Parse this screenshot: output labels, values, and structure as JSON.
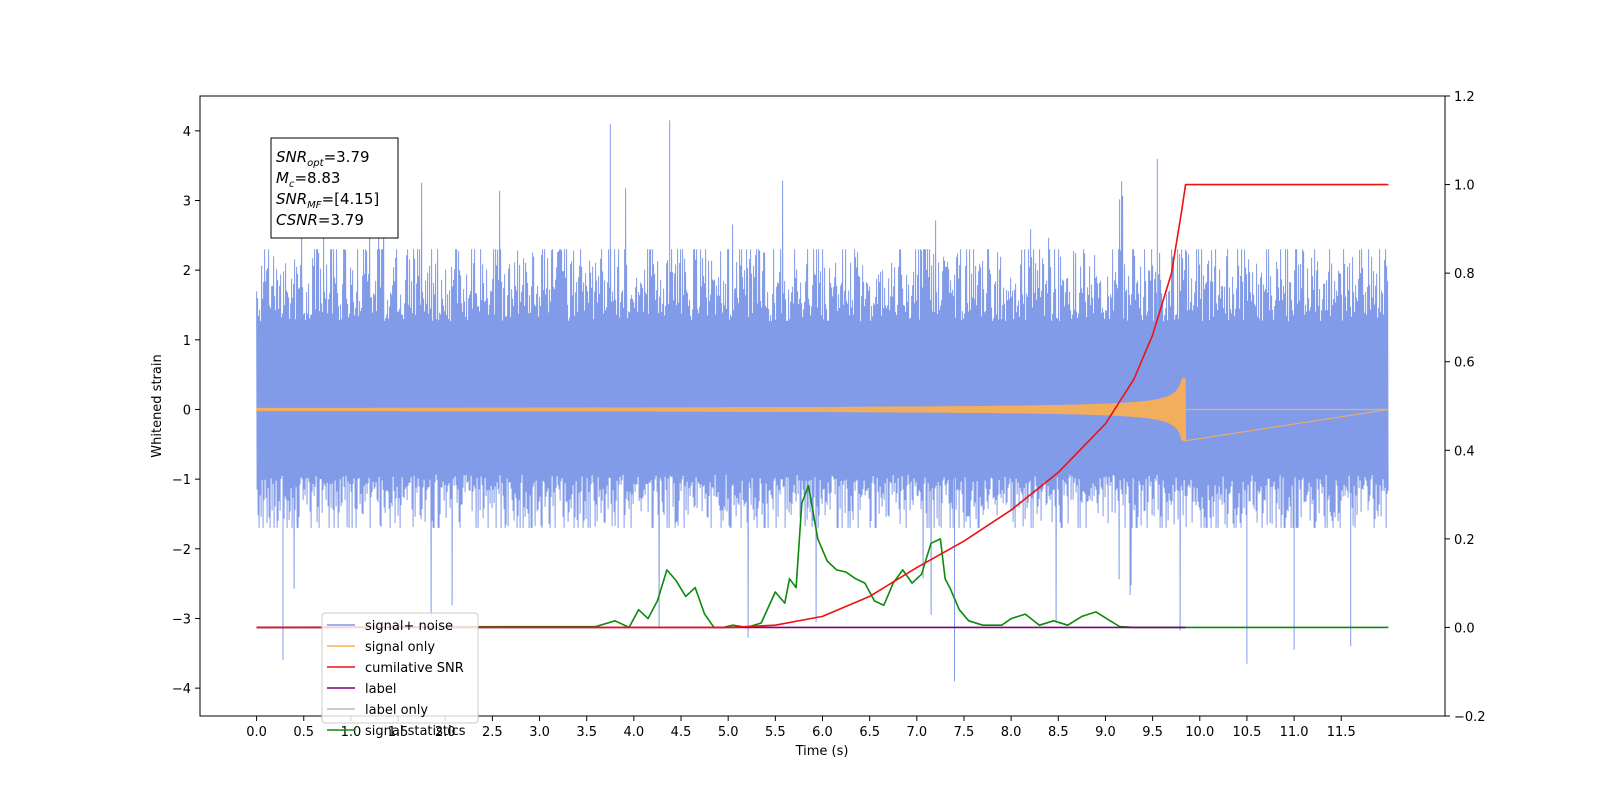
{
  "chart_data": {
    "type": "line",
    "title": "",
    "xlabel": "Time (s)",
    "ylabel": "Whitened strain",
    "xlim": [
      -0.6,
      12.6
    ],
    "ylim": [
      -4.4,
      4.5
    ],
    "y2lim": [
      -0.2,
      1.2
    ],
    "x_ticks": [
      0.0,
      0.5,
      1.0,
      1.5,
      2.0,
      2.5,
      3.0,
      3.5,
      4.0,
      4.5,
      5.0,
      5.5,
      6.0,
      6.5,
      7.0,
      7.5,
      8.0,
      8.5,
      9.0,
      9.5,
      10.0,
      10.5,
      11.0,
      11.5
    ],
    "x_tick_labels": [
      "0.0",
      "0.5",
      "1.0",
      "1.5",
      "2.0",
      "2.5",
      "3.0",
      "3.5",
      "4.0",
      "4.5",
      "5.0",
      "5.5",
      "6.0",
      "6.5",
      "7.0",
      "7.5",
      "8.0",
      "8.5",
      "9.0",
      "9.5",
      "10.0",
      "10.5",
      "11.0",
      "11.5"
    ],
    "y_ticks": [
      4,
      3,
      2,
      1,
      0,
      -1,
      -2,
      -3,
      -4
    ],
    "y_tick_labels": [
      "4",
      "3",
      "2",
      "1",
      "0",
      "−1",
      "−2",
      "−3",
      "−4"
    ],
    "y2_ticks": [
      1.2,
      1.0,
      0.8,
      0.6,
      0.4,
      0.2,
      0.0,
      -0.2
    ],
    "y2_tick_labels": [
      "1.2",
      "1.0",
      "0.8",
      "0.6",
      "0.4",
      "0.2",
      "0.0",
      "−0.2"
    ],
    "grid": false,
    "legend_position": "lower-left",
    "annotation": {
      "lines": [
        {
          "main": "SNR",
          "sub": "opt",
          "value": "=3.79"
        },
        {
          "main": "M",
          "sub": "c",
          "value": "=8.83"
        },
        {
          "main": "SNR",
          "sub": "MF",
          "value": "=[4.15]"
        },
        {
          "main": "CSNR",
          "sub": "",
          "value": "=3.79"
        }
      ]
    },
    "series": [
      {
        "name": "signal+ noise",
        "color": "#7b96e8",
        "axis": "left",
        "kind": "noise",
        "x_range": [
          0.0,
          12.0
        ],
        "typical_amplitude": [
          -1.7,
          2.3
        ],
        "notable_peaks": [
          [
            3.75,
            4.1
          ],
          [
            4.38,
            4.15
          ],
          [
            9.55,
            3.6
          ],
          [
            0.28,
            -3.6
          ],
          [
            7.4,
            -3.9
          ],
          [
            10.5,
            -3.65
          ],
          [
            11.0,
            -3.45
          ],
          [
            11.6,
            -3.4
          ]
        ]
      },
      {
        "name": "signal only",
        "color": "#ffb04d",
        "axis": "left",
        "kind": "chirp",
        "merger_time": 9.85,
        "peak_amplitude": 0.45
      },
      {
        "name": "cumilative SNR",
        "color": "#ee1111",
        "axis": "right",
        "x": [
          0.0,
          5.0,
          5.5,
          6.0,
          6.5,
          7.0,
          7.5,
          8.0,
          8.5,
          9.0,
          9.3,
          9.5,
          9.7,
          9.8,
          9.85,
          12.0
        ],
        "y": [
          0.0,
          0.0,
          0.005,
          0.025,
          0.07,
          0.135,
          0.195,
          0.265,
          0.35,
          0.46,
          0.56,
          0.66,
          0.8,
          0.93,
          1.0,
          1.0
        ]
      },
      {
        "name": "label",
        "color": "#7f007f",
        "axis": "right",
        "x": [
          0.0,
          9.85
        ],
        "y": [
          0.0,
          0.0
        ]
      },
      {
        "name": "label only",
        "color": "#bbbbbb",
        "axis": "right",
        "x": [],
        "y": []
      },
      {
        "name": "signal statistics",
        "color": "#0b8a0b",
        "axis": "right",
        "x": [
          0.0,
          3.6,
          3.8,
          3.95,
          4.05,
          4.15,
          4.25,
          4.35,
          4.45,
          4.55,
          4.65,
          4.75,
          4.85,
          4.95,
          5.05,
          5.2,
          5.35,
          5.5,
          5.6,
          5.65,
          5.72,
          5.78,
          5.85,
          5.95,
          6.05,
          6.15,
          6.25,
          6.35,
          6.45,
          6.55,
          6.65,
          6.75,
          6.85,
          6.95,
          7.05,
          7.15,
          7.25,
          7.3,
          7.35,
          7.45,
          7.55,
          7.7,
          7.9,
          8.0,
          8.15,
          8.3,
          8.45,
          8.6,
          8.75,
          8.9,
          9.05,
          9.15,
          9.3,
          9.6,
          12.0
        ],
        "y": [
          0.0,
          0.002,
          0.015,
          0.0,
          0.04,
          0.02,
          0.06,
          0.13,
          0.105,
          0.07,
          0.09,
          0.03,
          0.0,
          0.0,
          0.005,
          0.0,
          0.01,
          0.08,
          0.055,
          0.11,
          0.09,
          0.28,
          0.32,
          0.2,
          0.15,
          0.13,
          0.125,
          0.11,
          0.1,
          0.06,
          0.05,
          0.1,
          0.13,
          0.1,
          0.12,
          0.19,
          0.2,
          0.11,
          0.09,
          0.04,
          0.015,
          0.005,
          0.005,
          0.02,
          0.03,
          0.005,
          0.015,
          0.005,
          0.025,
          0.035,
          0.015,
          0.002,
          0.0,
          0.0,
          0.0
        ]
      }
    ]
  }
}
